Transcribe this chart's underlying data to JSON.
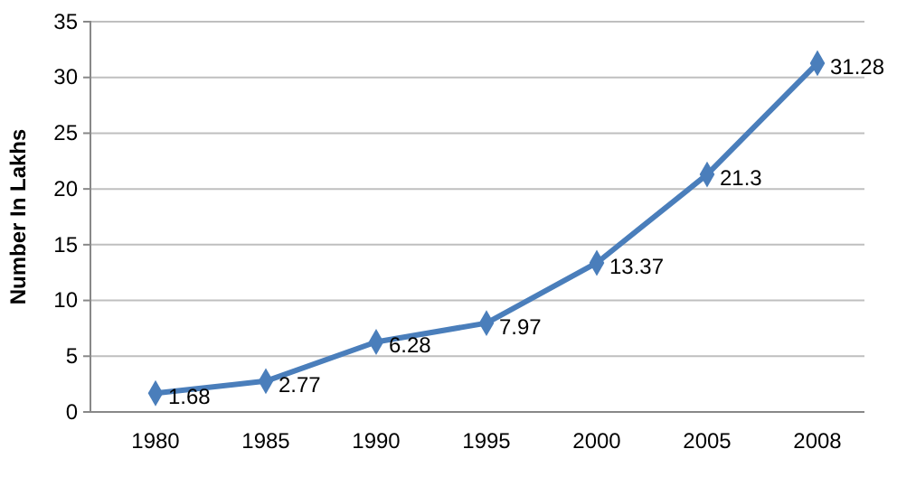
{
  "chart_data": {
    "type": "line",
    "ylabel": "Number In Lakhs",
    "categories": [
      "1980",
      "1985",
      "1990",
      "1995",
      "2000",
      "2005",
      "2008"
    ],
    "series": [
      {
        "color": "#4a7ebb",
        "values": [
          1.68,
          2.77,
          6.28,
          7.97,
          13.37,
          21.3,
          31.28
        ]
      }
    ],
    "ylim": [
      0,
      35
    ],
    "yticks": [
      0,
      5,
      10,
      15,
      20,
      25,
      30,
      35
    ],
    "grid": "y",
    "marker": "diamond",
    "line_style": "solid",
    "data_labels": true
  }
}
